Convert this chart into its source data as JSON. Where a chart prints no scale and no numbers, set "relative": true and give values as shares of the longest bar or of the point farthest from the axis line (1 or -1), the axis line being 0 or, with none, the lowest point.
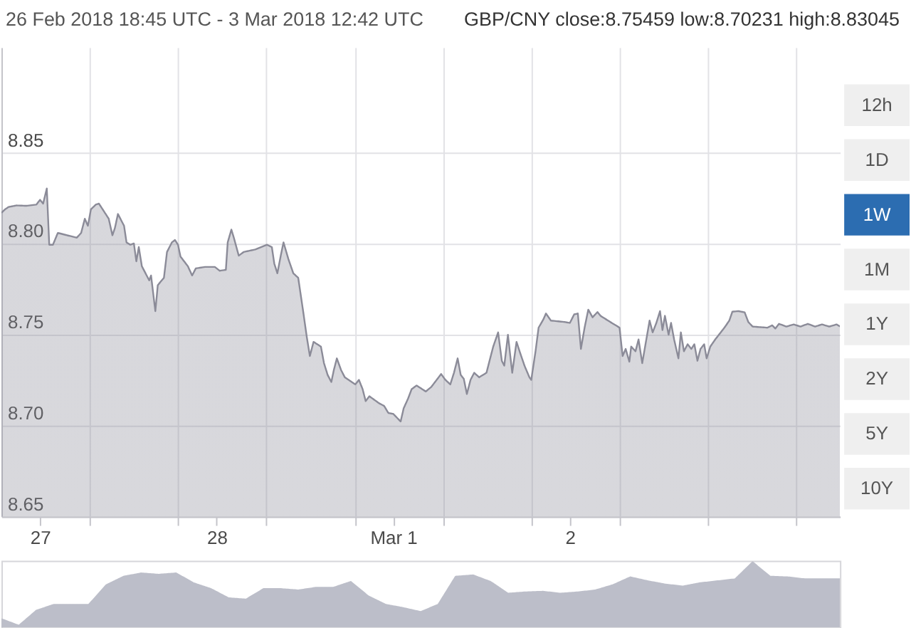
{
  "chart_data": [
    {
      "type": "area",
      "title": "26 Feb 2018 18:45 UTC - 3 Mar 2018 12:42 UTC",
      "subtitle": "GBP/CNY close:8.75459 low:8.70231 high:8.83045",
      "color": "#8b8b98",
      "grid": true,
      "x": [
        "2018-02-26T18:45",
        "2018-02-26T19:15",
        "2018-02-26T19:45",
        "2018-02-26T20:50",
        "2018-02-26T22:10",
        "2018-02-26T23:30",
        "2018-02-27T00:00",
        "2018-02-27T00:25",
        "2018-02-27T00:55",
        "2018-02-27T01:15",
        "2018-02-27T01:45",
        "2018-02-27T02:25",
        "2018-02-27T03:40",
        "2018-02-27T05:00",
        "2018-02-27T05:35",
        "2018-02-27T06:05",
        "2018-02-27T06:30",
        "2018-02-27T06:55",
        "2018-02-27T07:35",
        "2018-02-27T08:00",
        "2018-02-27T08:30",
        "2018-02-27T09:20",
        "2018-02-27T09:50",
        "2018-02-27T10:10",
        "2018-02-27T10:35",
        "2018-02-27T11:25",
        "2018-02-27T11:45",
        "2018-02-27T12:15",
        "2018-02-27T12:45",
        "2018-02-27T13:05",
        "2018-02-27T13:25",
        "2018-02-27T13:50",
        "2018-02-27T14:50",
        "2018-02-27T15:05",
        "2018-02-27T15:40",
        "2018-02-27T16:00",
        "2018-02-27T16:50",
        "2018-02-27T17:15",
        "2018-02-27T17:55",
        "2018-02-27T18:20",
        "2018-02-27T18:45",
        "2018-02-27T19:05",
        "2018-02-27T20:05",
        "2018-02-27T20:40",
        "2018-02-27T21:10",
        "2018-02-27T22:25",
        "2018-02-27T23:45",
        "2018-02-28T00:25",
        "2018-02-28T01:15",
        "2018-02-28T01:30",
        "2018-02-28T02:00",
        "2018-02-28T02:20",
        "2018-02-28T03:00",
        "2018-02-28T03:40",
        "2018-02-28T05:15",
        "2018-02-28T06:50",
        "2018-02-28T07:30",
        "2018-02-28T07:50",
        "2018-02-28T08:15",
        "2018-02-28T08:45",
        "2018-02-28T09:05",
        "2018-02-28T09:45",
        "2018-02-28T10:25",
        "2018-02-28T11:05",
        "2018-02-28T11:45",
        "2018-02-28T12:15",
        "2018-02-28T12:40",
        "2018-02-28T13:10",
        "2018-02-28T14:10",
        "2018-02-28T14:35",
        "2018-02-28T15:05",
        "2018-02-28T15:35",
        "2018-02-28T15:55",
        "2018-02-28T16:20",
        "2018-02-28T16:55",
        "2018-02-28T17:25",
        "2018-02-28T18:50",
        "2018-02-28T19:20",
        "2018-02-28T19:50",
        "2018-02-28T20:15",
        "2018-02-28T20:45",
        "2018-02-28T22:05",
        "2018-02-28T22:45",
        "2018-02-28T23:20",
        "2018-03-01T00:00",
        "2018-03-01T01:00",
        "2018-03-01T01:25",
        "2018-03-01T02:00",
        "2018-03-01T02:30",
        "2018-03-01T03:10",
        "2018-03-01T04:25",
        "2018-03-01T05:10",
        "2018-03-01T06:30",
        "2018-03-01T07:05",
        "2018-03-01T07:45",
        "2018-03-01T08:15",
        "2018-03-01T08:45",
        "2018-03-01T09:10",
        "2018-03-01T09:35",
        "2018-03-01T10:00",
        "2018-03-01T10:30",
        "2018-03-01T11:00",
        "2018-03-01T11:40",
        "2018-03-01T12:40",
        "2018-03-01T13:05",
        "2018-03-01T13:35",
        "2018-03-01T14:15",
        "2018-03-01T14:45",
        "2018-03-01T15:05",
        "2018-03-01T15:35",
        "2018-03-01T15:50",
        "2018-03-01T16:10",
        "2018-03-01T16:45",
        "2018-03-01T17:10",
        "2018-03-01T17:50",
        "2018-03-01T18:30",
        "2018-03-01T18:45",
        "2018-03-01T19:20",
        "2018-03-01T19:45",
        "2018-03-01T20:25",
        "2018-03-01T20:45",
        "2018-03-01T21:25",
        "2018-03-01T23:20",
        "2018-03-02T00:00",
        "2018-03-02T00:35",
        "2018-03-02T01:05",
        "2018-03-02T01:30",
        "2018-03-02T02:00",
        "2018-03-02T02:30",
        "2018-03-02T03:05",
        "2018-03-02T03:45",
        "2018-03-02T04:10",
        "2018-03-02T05:30",
        "2018-03-02T06:45",
        "2018-03-02T07:10",
        "2018-03-02T07:35",
        "2018-03-02T08:05",
        "2018-03-02T08:20",
        "2018-03-02T08:55",
        "2018-03-02T09:20",
        "2018-03-02T09:50",
        "2018-03-02T10:20",
        "2018-03-02T10:50",
        "2018-03-02T11:15",
        "2018-03-02T11:45",
        "2018-03-02T12:15",
        "2018-03-02T12:35",
        "2018-03-02T12:55",
        "2018-03-02T13:25",
        "2018-03-02T13:45",
        "2018-03-02T14:10",
        "2018-03-02T14:45",
        "2018-03-02T15:05",
        "2018-03-02T15:30",
        "2018-03-02T16:00",
        "2018-03-02T16:30",
        "2018-03-02T16:55",
        "2018-03-02T17:20",
        "2018-03-02T17:45",
        "2018-03-02T18:15",
        "2018-03-02T18:35",
        "2018-03-02T19:05",
        "2018-03-02T19:45",
        "2018-03-02T21:00",
        "2018-03-02T21:40",
        "2018-03-02T22:05",
        "2018-03-02T22:55",
        "2018-03-02T23:45",
        "2018-03-03T00:15",
        "2018-03-03T00:50",
        "2018-03-03T02:50",
        "2018-03-03T03:30",
        "2018-03-03T03:55",
        "2018-03-03T04:25",
        "2018-03-03T05:25",
        "2018-03-03T06:25",
        "2018-03-03T07:20",
        "2018-03-03T08:20",
        "2018-03-03T09:20",
        "2018-03-03T10:15",
        "2018-03-03T11:15",
        "2018-03-03T12:15",
        "2018-03-03T12:42"
      ],
      "values": [
        8.817,
        8.819,
        8.8203,
        8.8211,
        8.8209,
        8.8216,
        8.8242,
        8.8221,
        8.83045,
        8.7995,
        8.7995,
        8.806,
        8.8047,
        8.8034,
        8.806,
        8.8138,
        8.8099,
        8.819,
        8.8216,
        8.8221,
        8.819,
        8.8138,
        8.8047,
        8.8086,
        8.8164,
        8.8099,
        8.8008,
        8.7995,
        8.8002,
        8.7904,
        8.7982,
        8.7877,
        8.7799,
        8.7826,
        8.763,
        8.7773,
        8.7813,
        8.7955,
        8.8008,
        8.8021,
        8.7995,
        8.793,
        8.7877,
        8.7826,
        8.7865,
        8.7873,
        8.7873,
        8.7852,
        8.7857,
        8.8008,
        8.8078,
        8.8034,
        8.7935,
        8.7955,
        8.7969,
        8.7995,
        8.7982,
        8.7891,
        8.7838,
        8.7943,
        8.8008,
        8.7916,
        8.7838,
        8.7813,
        8.763,
        8.7487,
        8.7383,
        8.7461,
        8.7435,
        8.7344,
        8.7279,
        8.724,
        8.7305,
        8.737,
        8.7305,
        8.7266,
        8.7227,
        8.7252,
        8.7201,
        8.7135,
        8.7162,
        8.7123,
        8.7109,
        8.707,
        8.7065,
        8.70231,
        8.7096,
        8.7148,
        8.7201,
        8.7221,
        8.7188,
        8.7213,
        8.7284,
        8.7252,
        8.7227,
        8.7291,
        8.737,
        8.7279,
        8.7258,
        8.7174,
        8.7252,
        8.7291,
        8.7266,
        8.7291,
        8.7357,
        8.7435,
        8.7513,
        8.7357,
        8.733,
        8.75,
        8.7409,
        8.7291,
        8.7461,
        8.7409,
        8.733,
        8.7266,
        8.7252,
        8.7409,
        8.7539,
        8.7586,
        8.7617,
        8.7578,
        8.757,
        8.7565,
        8.7612,
        8.7617,
        8.7422,
        8.7539,
        8.7638,
        8.7596,
        8.7625,
        8.7604,
        8.757,
        8.7539,
        8.7383,
        8.7422,
        8.7352,
        8.7435,
        8.7409,
        8.7474,
        8.7344,
        8.7461,
        8.7578,
        8.7513,
        8.7565,
        8.763,
        8.7526,
        8.7604,
        8.75,
        8.7565,
        8.7474,
        8.737,
        8.7513,
        8.7409,
        8.7448,
        8.7422,
        8.7448,
        8.7357,
        8.7422,
        8.7448,
        8.737,
        8.7435,
        8.7474,
        8.7539,
        8.7578,
        8.7627,
        8.763,
        8.7623,
        8.757,
        8.7545,
        8.7539,
        8.7552,
        8.7534,
        8.756,
        8.7545,
        8.7557,
        8.7545,
        8.756,
        8.7545,
        8.7557,
        8.7545,
        8.7557,
        8.75459
      ],
      "xlim": [
        "2018-02-26T18:45",
        "2018-03-03T12:42"
      ],
      "xticks": [
        {
          "value": "2018-02-27",
          "label": "27"
        },
        {
          "value": "2018-02-27T06:45",
          "label": null
        },
        {
          "value": "2018-02-27T18:45",
          "label": null
        },
        {
          "value": "2018-02-28",
          "label": "28"
        },
        {
          "value": "2018-02-28T06:45",
          "label": null
        },
        {
          "value": "2018-02-28T18:45",
          "label": null
        },
        {
          "value": "2018-03-01",
          "label": "Mar 1"
        },
        {
          "value": "2018-03-01T06:45",
          "label": null
        },
        {
          "value": "2018-03-01T18:45",
          "label": null
        },
        {
          "value": "2018-03-02",
          "label": "2"
        },
        {
          "value": "2018-03-02T06:45",
          "label": null
        },
        {
          "value": "2018-03-02T18:45",
          "label": null
        },
        {
          "value": "2018-03-03T06:45",
          "label": null
        }
      ],
      "ylim": [
        8.65,
        8.908
      ],
      "yticks": [
        {
          "value": 8.65,
          "label": "8.65"
        },
        {
          "value": 8.7,
          "label": "8.70"
        },
        {
          "value": 8.75,
          "label": "8.75"
        },
        {
          "value": 8.8,
          "label": "8.80"
        },
        {
          "value": 8.85,
          "label": "8.85"
        }
      ]
    },
    {
      "type": "area",
      "relative": true,
      "color": "#bcbec9",
      "categories": [
        null,
        null,
        null,
        null,
        null,
        null,
        null,
        null,
        null,
        null,
        null,
        null,
        null,
        null,
        null,
        null,
        null,
        null,
        null,
        null,
        null,
        null,
        null,
        null,
        null,
        null,
        null,
        null,
        null,
        null,
        null,
        null,
        null,
        null,
        null,
        null,
        null,
        null,
        null,
        null,
        null,
        null,
        null,
        null,
        null,
        null,
        null,
        null,
        null
      ],
      "values": [
        0.13,
        0.03,
        0.26,
        0.35,
        0.35,
        0.35,
        0.65,
        0.78,
        0.83,
        0.81,
        0.83,
        0.68,
        0.59,
        0.45,
        0.43,
        0.59,
        0.59,
        0.57,
        0.61,
        0.61,
        0.7,
        0.48,
        0.35,
        0.3,
        0.24,
        0.35,
        0.78,
        0.8,
        0.7,
        0.52,
        0.54,
        0.55,
        0.52,
        0.54,
        0.57,
        0.65,
        0.77,
        0.71,
        0.66,
        0.63,
        0.68,
        0.71,
        0.74,
        1,
        0.78,
        0.77,
        0.74,
        0.74,
        0.74
      ]
    },
    {
      "type": "other",
      "categories": [
        "12h",
        "1D",
        "1W",
        "1M",
        "1Y",
        "2Y",
        "5Y",
        "10Y"
      ],
      "colors": [
        "#efefef",
        "#efefef",
        "#2c6db1",
        "#efefef",
        "#efefef",
        "#efefef",
        "#efefef",
        "#efefef"
      ]
    }
  ]
}
